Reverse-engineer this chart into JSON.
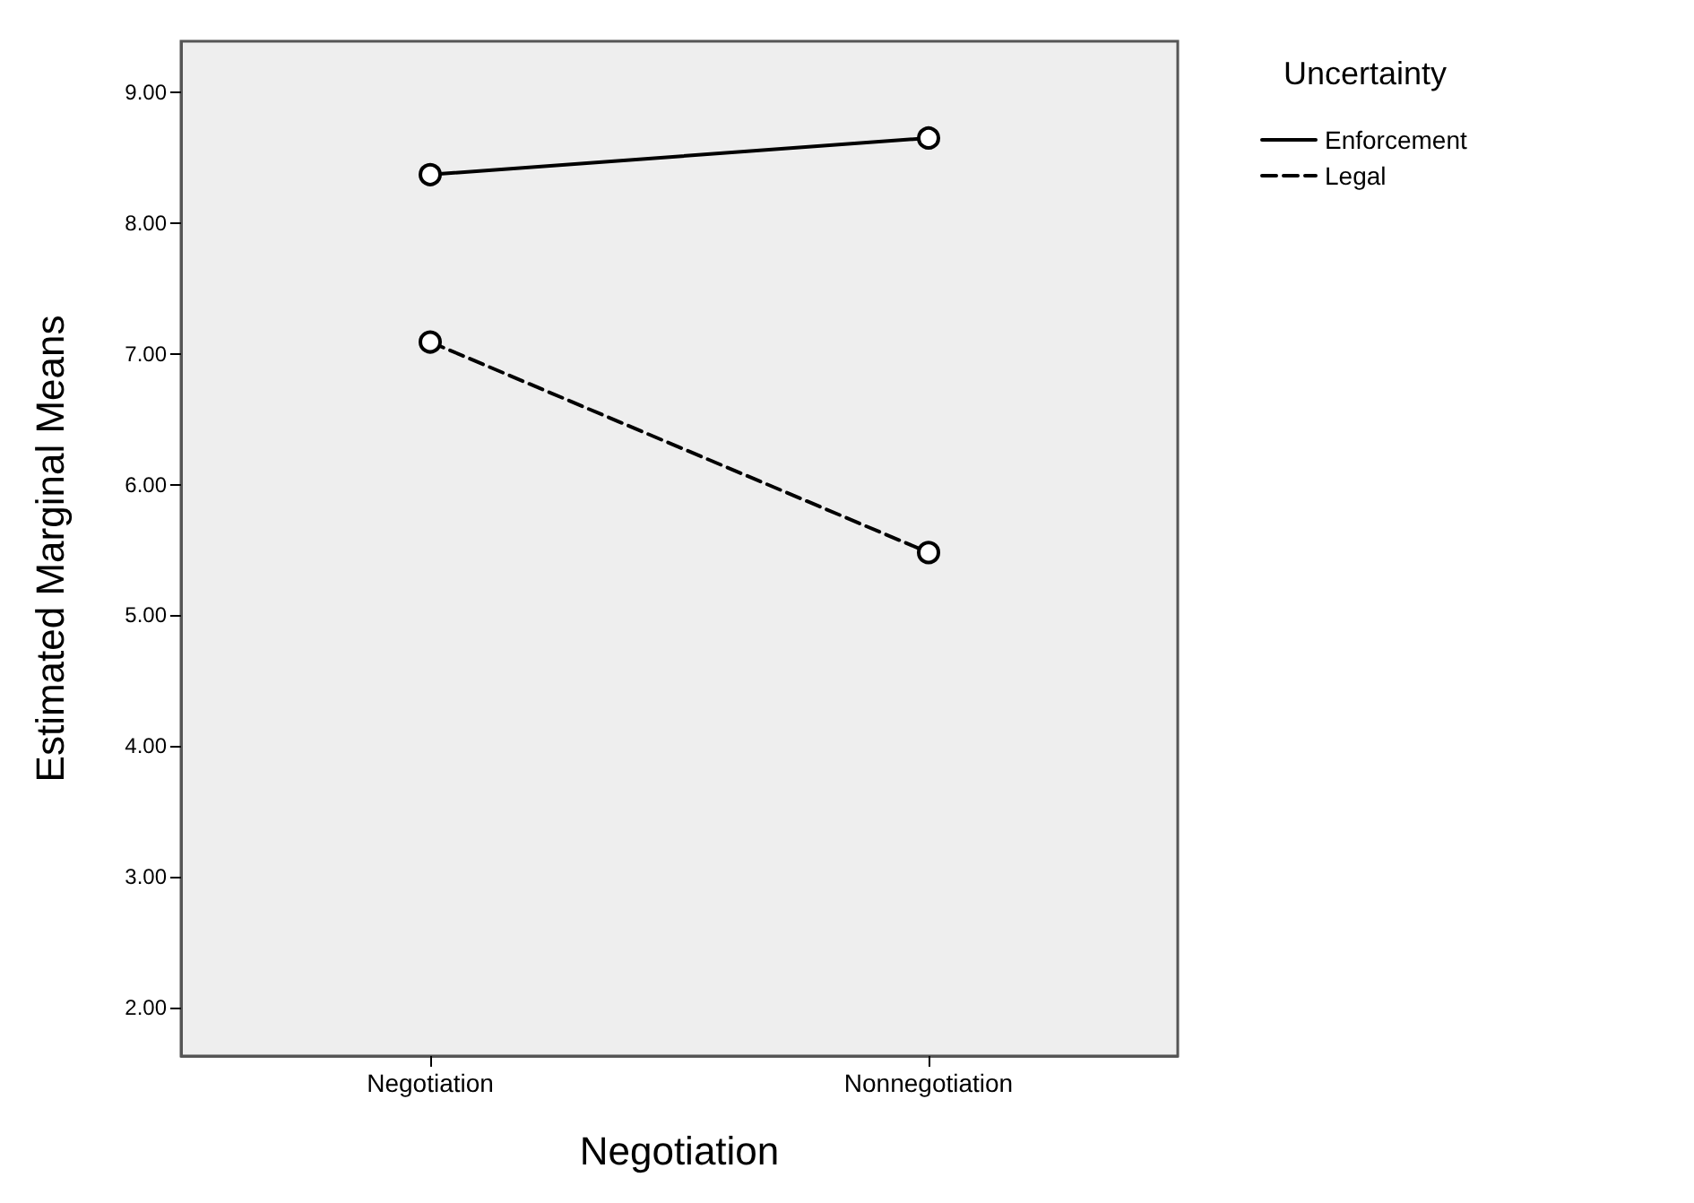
{
  "chart_data": {
    "type": "line",
    "xlabel": "Negotiation",
    "ylabel": "Estimated Marginal Means",
    "legend_title": "Uncertainty",
    "legend": "top right",
    "marker": "circle",
    "grid": false,
    "categories": [
      "Negotiation",
      "Nonnegotiation"
    ],
    "series": [
      {
        "name": "Enforcement",
        "color": "#000000",
        "line_style": "solid",
        "values": [
          8.37,
          8.65
        ]
      },
      {
        "name": "Legal",
        "color": "#000000",
        "line_style": "dashed",
        "values": [
          7.09,
          5.48
        ]
      }
    ],
    "ylim": [
      1.63,
      9.39
    ],
    "yticks": [
      {
        "value": 2,
        "label": "2.00"
      },
      {
        "value": 3,
        "label": "3.00"
      },
      {
        "value": 4,
        "label": "4.00"
      },
      {
        "value": 5,
        "label": "5.00"
      },
      {
        "value": 6,
        "label": "6.00"
      },
      {
        "value": 7,
        "label": "7.00"
      },
      {
        "value": 8,
        "label": "8.00"
      },
      {
        "value": 9,
        "label": "9.00"
      }
    ]
  }
}
